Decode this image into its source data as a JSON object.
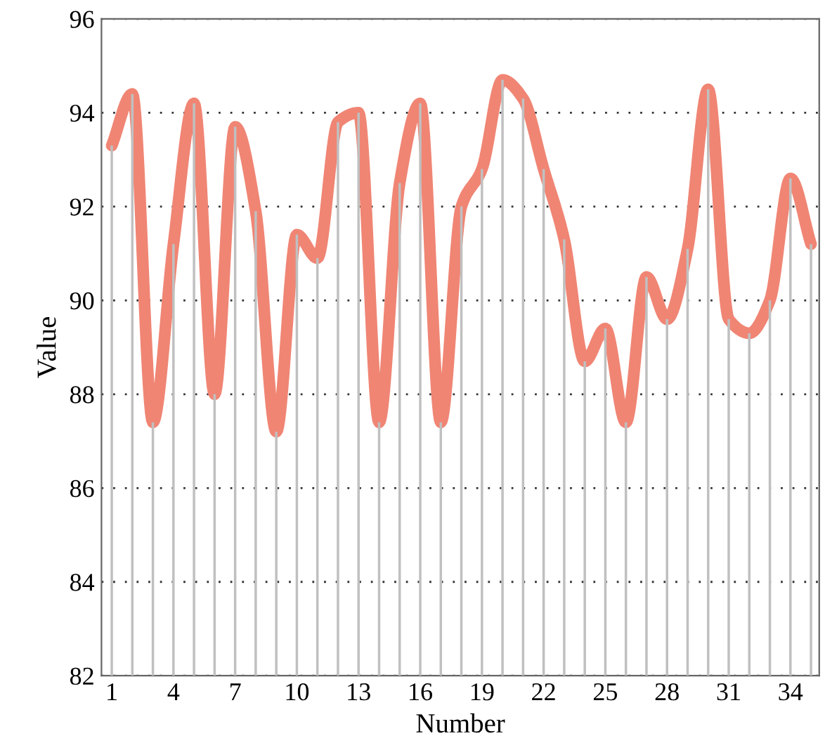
{
  "chart_data": {
    "type": "line",
    "xlabel": "Number",
    "ylabel": "Value",
    "x": [
      1,
      2,
      3,
      4,
      5,
      6,
      7,
      8,
      9,
      10,
      11,
      12,
      13,
      14,
      15,
      16,
      17,
      18,
      19,
      20,
      21,
      22,
      23,
      24,
      25,
      26,
      27,
      28,
      29,
      30,
      31,
      32,
      33,
      34,
      35
    ],
    "series": [
      {
        "type": "bar",
        "color": "#c0c0c0",
        "values": [
          93.3,
          94.4,
          87.4,
          91.2,
          94.2,
          88.0,
          93.7,
          91.9,
          87.2,
          91.4,
          90.9,
          93.8,
          94.0,
          87.4,
          92.5,
          94.2,
          87.4,
          92.0,
          92.8,
          94.7,
          94.3,
          92.8,
          91.3,
          88.7,
          89.4,
          87.4,
          90.5,
          89.6,
          91.1,
          94.5,
          89.6,
          89.3,
          90.0,
          92.6,
          91.2
        ]
      },
      {
        "color": "#f08574",
        "values": [
          93.3,
          94.4,
          87.4,
          91.2,
          94.2,
          88.0,
          93.7,
          91.9,
          87.2,
          91.4,
          90.9,
          93.8,
          94.0,
          87.4,
          92.5,
          94.2,
          87.4,
          92.0,
          92.8,
          94.7,
          94.3,
          92.8,
          91.3,
          88.7,
          89.4,
          87.4,
          90.5,
          89.6,
          91.1,
          94.5,
          89.6,
          89.3,
          90.0,
          92.6,
          91.2
        ]
      }
    ],
    "xlim": [
      0.5,
      35.4
    ],
    "xticks": [
      1,
      4,
      7,
      10,
      13,
      16,
      19,
      22,
      25,
      28,
      31,
      34
    ],
    "ylim": [
      82,
      96
    ],
    "yticks": [
      82,
      84,
      86,
      88,
      90,
      92,
      94,
      96
    ],
    "grid": "y",
    "marker": "none",
    "line_style": "solid"
  }
}
